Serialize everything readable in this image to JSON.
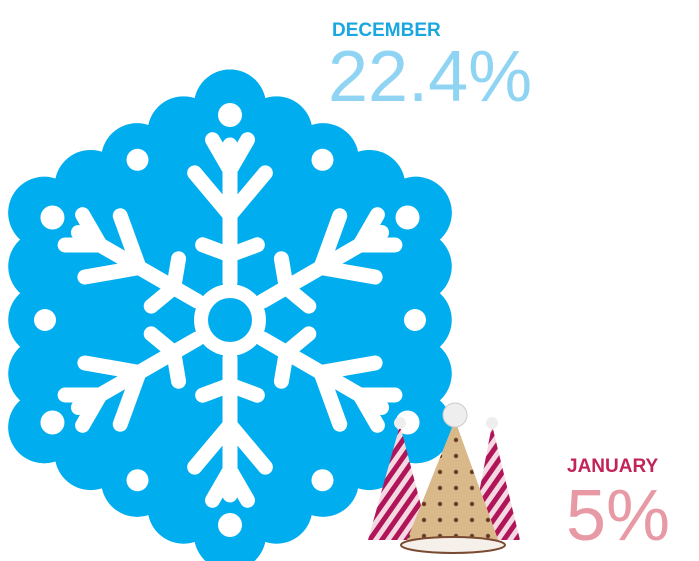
{
  "items": [
    {
      "label": "DECEMBER",
      "value": "22.4%"
    },
    {
      "label": "JANUARY",
      "value": "5%"
    }
  ]
}
